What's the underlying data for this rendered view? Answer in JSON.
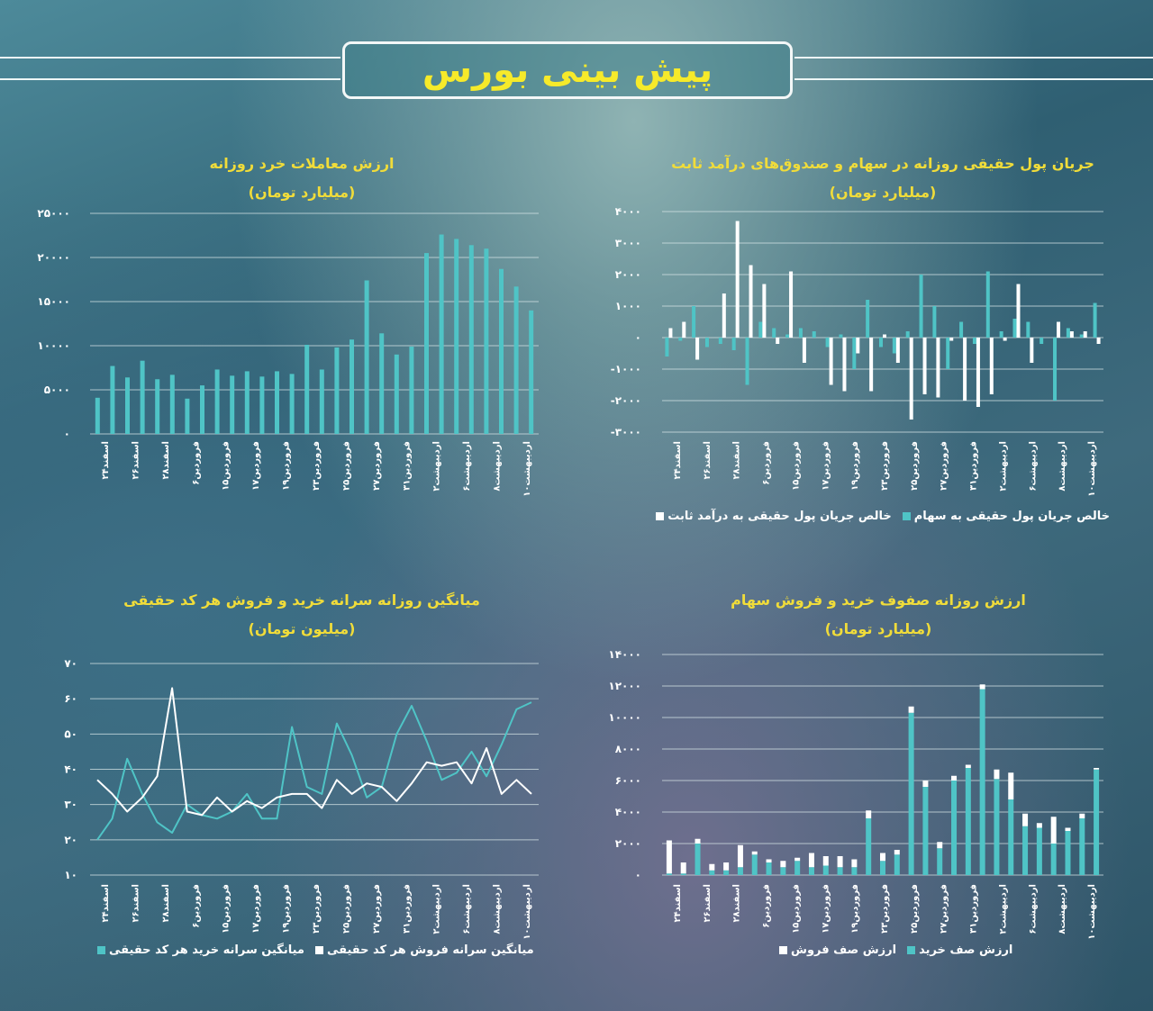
{
  "header": {
    "title": "پیش بینی بورس"
  },
  "colors": {
    "teal": "#4fc4c6",
    "white": "#ffffff",
    "title": "#f0dc3a",
    "grid": "#d6e4e6"
  },
  "chart_data": [
    {
      "id": "net_flow",
      "type": "bar",
      "title": "جریان پول حقیقی روزانه در سهام و صندوق‌های درآمد ثابت",
      "subtitle": "(میلیارد تومان)",
      "ylim": [
        -3000,
        4000
      ],
      "yticks": [
        -3000,
        -2000,
        -1000,
        0,
        1000,
        2000,
        3000,
        4000
      ],
      "ytick_labels": [
        "-۳۰۰۰",
        "-۲۰۰۰",
        "-۱۰۰۰",
        "۰",
        "۱۰۰۰",
        "۲۰۰۰",
        "۳۰۰۰",
        "۴۰۰۰"
      ],
      "xtick_labels": [
        "اسفند۲۴",
        "اسفند۲۶",
        "اسفند۲۸",
        "فروردین۶",
        "فروردین۱۵",
        "فروردین۱۷",
        "فروردین۱۹",
        "فروردین۲۳",
        "فروردین۲۵",
        "فروردین۲۷",
        "فروردین۳۱",
        "اردیبهشت۲",
        "اردیبهشت۶",
        "اردیبهشت۸",
        "اردیبهشت۱۰"
      ],
      "series": [
        {
          "name": "خالص جریان پول حقیقی به سهام",
          "color": "#4fc4c6",
          "values": [
            -600,
            -100,
            1000,
            -300,
            -200,
            -400,
            -1500,
            500,
            300,
            100,
            300,
            200,
            -300,
            100,
            -1000,
            1200,
            -300,
            -500,
            200,
            2000,
            1000,
            -1000,
            500,
            -200,
            2100,
            200,
            600,
            500,
            -200,
            -2000,
            300,
            100,
            1100
          ]
        },
        {
          "name": "خالص جریان پول حقیقی به درآمد ثابت",
          "color": "#ffffff",
          "values": [
            300,
            500,
            -700,
            0,
            1400,
            3700,
            2300,
            1700,
            -200,
            2100,
            -800,
            0,
            -1500,
            -1700,
            -500,
            -1700,
            100,
            -800,
            -2600,
            -1800,
            -1900,
            -100,
            -2000,
            -2200,
            -1800,
            -100,
            1700,
            -800,
            0,
            500,
            200,
            200,
            -200
          ]
        }
      ],
      "legend_position": "bottom"
    },
    {
      "id": "retail_value",
      "type": "bar",
      "title": "ارزش معاملات خرد روزانه",
      "subtitle": "(میلیارد تومان)",
      "ylim": [
        0,
        25000
      ],
      "yticks": [
        0,
        5000,
        10000,
        15000,
        20000,
        25000
      ],
      "ytick_labels": [
        "۰",
        "۵۰۰۰",
        "۱۰۰۰۰",
        "۱۵۰۰۰",
        "۲۰۰۰۰",
        "۲۵۰۰۰"
      ],
      "xtick_labels": [
        "اسفند۲۴",
        "اسفند۲۶",
        "اسفند۲۸",
        "فروردین۶",
        "فروردین۱۵",
        "فروردین۱۷",
        "فروردین۱۹",
        "فروردین۲۳",
        "فروردین۲۵",
        "فروردین۲۷",
        "فروردین۳۱",
        "اردیبهشت۲",
        "اردیبهشت۶",
        "اردیبهشت۸",
        "اردیبهشت۱۰"
      ],
      "series": [
        {
          "name": "",
          "color": "#4fc4c6",
          "values": [
            4100,
            7700,
            6400,
            8300,
            6200,
            6700,
            4000,
            5500,
            7300,
            6600,
            7100,
            6500,
            7100,
            6800,
            10100,
            7300,
            9800,
            10700,
            17400,
            11400,
            9000,
            9900,
            20500,
            22600,
            22100,
            21400,
            21000,
            18700,
            16700,
            14000
          ]
        }
      ]
    },
    {
      "id": "queues",
      "type": "bar",
      "title": "ارزش روزانه صفوف خرید و فروش سهام",
      "subtitle": "(میلیارد تومان)",
      "ylim": [
        0,
        14000
      ],
      "yticks": [
        0,
        2000,
        4000,
        6000,
        8000,
        10000,
        12000,
        14000
      ],
      "ytick_labels": [
        "۰",
        "۲۰۰۰",
        "۴۰۰۰",
        "۶۰۰۰",
        "۸۰۰۰",
        "۱۰۰۰۰",
        "۱۲۰۰۰",
        "۱۴۰۰۰"
      ],
      "xtick_labels": [
        "اسفند۲۴",
        "اسفند۲۶",
        "اسفند۲۸",
        "فروردین۶",
        "فروردین۱۵",
        "فروردین۱۷",
        "فروردین۱۹",
        "فروردین۲۳",
        "فروردین۲۵",
        "فروردین۲۷",
        "فروردین۳۱",
        "اردیبهشت۲",
        "اردیبهشت۶",
        "اردیبهشت۸",
        "اردیبهشت۱۰"
      ],
      "series": [
        {
          "name": "ارزش صف خرید",
          "color": "#4fc4c6",
          "values": [
            100,
            100,
            2000,
            300,
            300,
            500,
            1300,
            800,
            500,
            900,
            500,
            600,
            500,
            500,
            3600,
            900,
            1300,
            10300,
            5600,
            1700,
            6000,
            6800,
            11800,
            6100,
            4800,
            3100,
            3000,
            2000,
            2800,
            3600,
            6700
          ]
        },
        {
          "name": "ارزش صف فروش",
          "color": "#ffffff",
          "values": [
            2100,
            700,
            300,
            400,
            500,
            1400,
            200,
            200,
            400,
            200,
            900,
            600,
            700,
            500,
            500,
            500,
            300,
            400,
            400,
            400,
            300,
            200,
            300,
            600,
            1700,
            800,
            300,
            1700,
            200,
            300,
            100
          ]
        }
      ],
      "legend_position": "bottom"
    },
    {
      "id": "per_capita",
      "type": "line",
      "title": "میانگین روزانه سرانه خرید و فروش هر کد حقیقی",
      "subtitle": "(میلیون تومان)",
      "ylim": [
        10,
        70
      ],
      "yticks": [
        10,
        20,
        30,
        40,
        50,
        60,
        70
      ],
      "ytick_labels": [
        "۱۰",
        "۲۰",
        "۳۰",
        "۴۰",
        "۵۰",
        "۶۰",
        "۷۰"
      ],
      "xtick_labels": [
        "اسفند۲۴",
        "اسفند۲۶",
        "اسفند۲۸",
        "فروردین۶",
        "فروردین۱۵",
        "فروردین۱۷",
        "فروردین۱۹",
        "فروردین۲۳",
        "فروردین۲۵",
        "فروردین۲۷",
        "فروردین۳۱",
        "اردیبهشت۲",
        "اردیبهشت۶",
        "اردیبهشت۸",
        "اردیبهشت۱۰"
      ],
      "series": [
        {
          "name": "میانگین سرانه خرید هر کد حقیقی",
          "color": "#4fc4c6",
          "values": [
            20,
            26,
            43,
            33,
            25,
            22,
            30,
            27,
            26,
            28,
            33,
            26,
            26,
            52,
            35,
            33,
            53,
            44,
            32,
            35,
            50,
            58,
            48,
            37,
            39,
            45,
            38,
            47,
            57,
            59
          ]
        },
        {
          "name": "میانگین سرانه فروش هر کد حقیقی",
          "color": "#ffffff",
          "values": [
            37,
            33,
            28,
            32,
            38,
            63,
            28,
            27,
            32,
            28,
            31,
            29,
            32,
            33,
            33,
            29,
            37,
            33,
            36,
            35,
            31,
            36,
            42,
            41,
            42,
            36,
            46,
            33,
            37,
            33
          ]
        }
      ],
      "legend_position": "bottom"
    }
  ]
}
